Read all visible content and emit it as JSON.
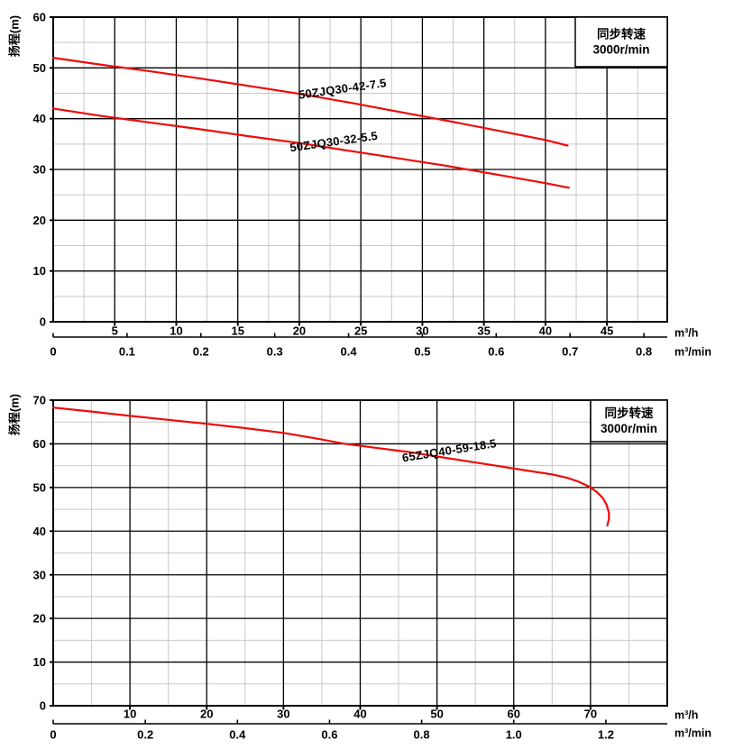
{
  "page": {
    "background": "#ffffff"
  },
  "chart_data": [
    {
      "type": "line",
      "title": "",
      "ylabel": "扬程(m)",
      "x_unit": "m³/h",
      "x2_unit": "m³/min",
      "x_axis": {
        "min": 0,
        "max": 49.9,
        "major": 5,
        "minor": 2.5,
        "ticks": [
          5,
          10,
          15,
          20,
          25,
          30,
          35,
          40,
          45
        ]
      },
      "y_axis": {
        "min": 0,
        "max": 60,
        "major": 10,
        "minor": 5,
        "ticks": [
          0,
          10,
          20,
          30,
          40,
          50,
          60
        ]
      },
      "x2_axis": {
        "values": [
          0,
          0.1,
          0.2,
          0.3,
          0.4,
          0.5,
          0.6,
          0.7,
          0.8
        ],
        "labels": [
          "0",
          "0.1",
          "0.2",
          "0.3",
          "0.4",
          "0.5",
          "0.6",
          "0.7",
          "0.8"
        ],
        "scale_to_primary": 60
      },
      "grid": {
        "major_color": "#000000",
        "minor_color": "#c8c8c8",
        "grid_on": true
      },
      "legend": {
        "lines": [
          "同步转速",
          "3000r/min"
        ],
        "text_color": "#17629e",
        "position": "top-right"
      },
      "series": [
        {
          "name": "50ZJQ30-42-7.5",
          "color": "#ee0a0a",
          "label_x": 23.5,
          "label_y": 45.9,
          "label_angle": -8,
          "points": [
            [
              0,
              52
            ],
            [
              4,
              50.6
            ],
            [
              8,
              49.3
            ],
            [
              12,
              47.9
            ],
            [
              16,
              46.4
            ],
            [
              20,
              44.9
            ],
            [
              24,
              43.2
            ],
            [
              28,
              41.4
            ],
            [
              32,
              39.6
            ],
            [
              36,
              37.7
            ],
            [
              40,
              35.8
            ],
            [
              41.8,
              34.7
            ]
          ]
        },
        {
          "name": "50ZJQ30-32-5.5",
          "color": "#ee0a0a",
          "label_x": 22.8,
          "label_y": 35.5,
          "label_angle": -8,
          "points": [
            [
              0,
              42
            ],
            [
              4,
              40.5
            ],
            [
              8,
              39.2
            ],
            [
              12,
              37.9
            ],
            [
              16,
              36.5
            ],
            [
              20,
              35.2
            ],
            [
              24,
              33.7
            ],
            [
              28,
              32.2
            ],
            [
              32,
              30.7
            ],
            [
              36,
              29.0
            ],
            [
              40,
              27.3
            ],
            [
              41.9,
              26.4
            ]
          ]
        }
      ]
    },
    {
      "type": "line",
      "title": "",
      "ylabel": "扬程(m)",
      "x_unit": "m³/h",
      "x2_unit": "m³/min",
      "x_axis": {
        "min": 0,
        "max": 80,
        "major": 10,
        "minor": 5,
        "ticks": [
          10,
          20,
          30,
          40,
          50,
          60,
          70
        ]
      },
      "y_axis": {
        "min": 0,
        "max": 70,
        "major": 10,
        "minor": 5,
        "ticks": [
          0,
          10,
          20,
          30,
          40,
          50,
          60,
          70
        ]
      },
      "x2_axis": {
        "values": [
          0,
          0.2,
          0.4,
          0.6,
          0.8,
          1.0,
          1.2
        ],
        "labels": [
          "0",
          "0.2",
          "0.4",
          "0.6",
          "0.8",
          "1.0",
          "1.2"
        ],
        "scale_to_primary": 60
      },
      "grid": {
        "major_color": "#000000",
        "minor_color": "#c8c8c8",
        "grid_on": true
      },
      "legend": {
        "lines": [
          "同步转速",
          "3000r/min"
        ],
        "text_color": "#17629e",
        "position": "top-right"
      },
      "series": [
        {
          "name": "65ZJQ40-59-18.5",
          "color": "#ee0a0a",
          "label_x": 51.6,
          "label_y": 58.5,
          "label_angle": -9,
          "points": [
            [
              0,
              68.3
            ],
            [
              5,
              67.4
            ],
            [
              10,
              66.4
            ],
            [
              15,
              65.5
            ],
            [
              20,
              64.6
            ],
            [
              25,
              63.6
            ],
            [
              30,
              62.5
            ],
            [
              34,
              61.3
            ],
            [
              38,
              60.0
            ],
            [
              42,
              59.1
            ],
            [
              46,
              58.2
            ],
            [
              50,
              57.1
            ],
            [
              54,
              56.0
            ],
            [
              58,
              54.9
            ],
            [
              62,
              53.8
            ],
            [
              65,
              53.0
            ],
            [
              67,
              52.2
            ],
            [
              68.5,
              51.3
            ],
            [
              69.8,
              50.2
            ],
            [
              70.8,
              49.0
            ],
            [
              71.6,
              47.6
            ],
            [
              72.1,
              46.0
            ],
            [
              72.4,
              44.2
            ],
            [
              72.4,
              42.8
            ],
            [
              72.2,
              41.3
            ]
          ]
        }
      ]
    }
  ]
}
